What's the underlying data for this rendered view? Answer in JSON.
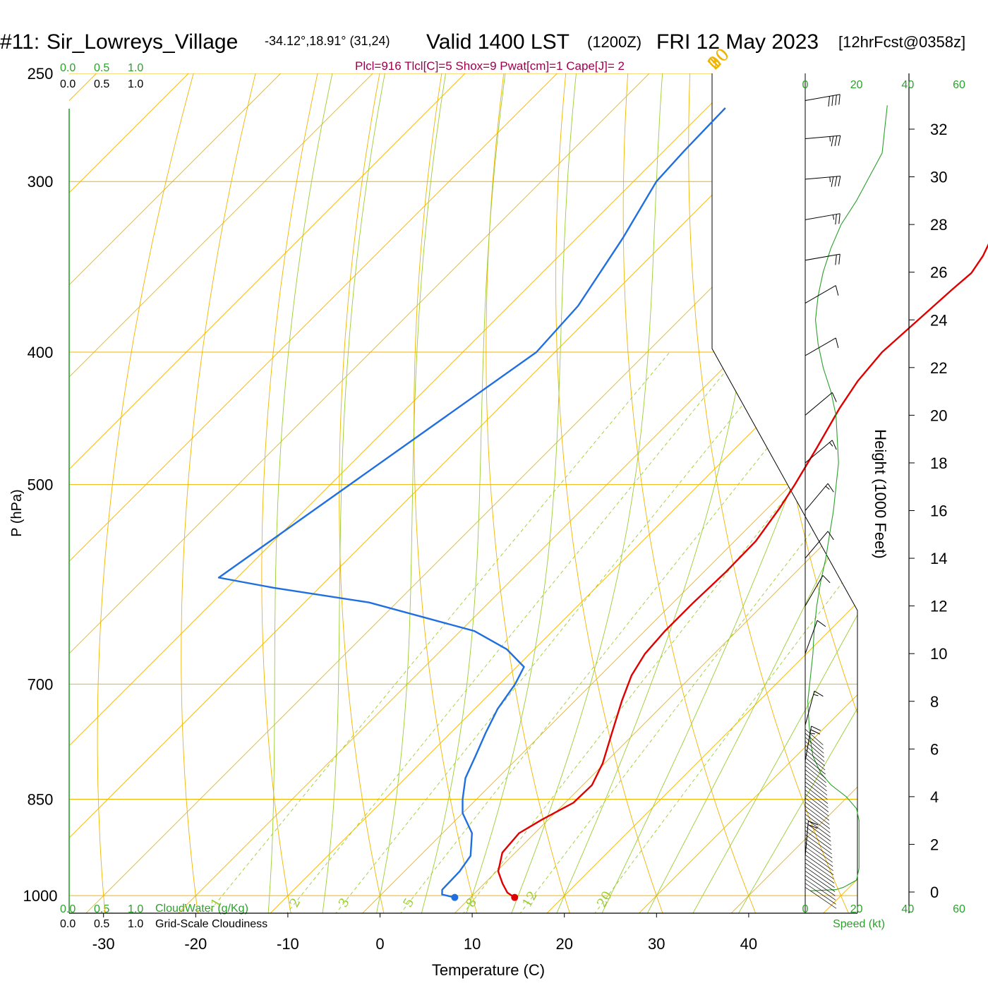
{
  "header": {
    "station_id": "#11:",
    "station_name": "Sir_Lowreys_Village",
    "coords": "-34.12°,18.91° (31,24)",
    "valid": "Valid 1400 LST",
    "utc": "(1200Z)",
    "date": "FRI 12 May 2023",
    "forecast": "[12hrFcst@0358z]"
  },
  "indices": "Plcl=916 Tlcl[C]=5 Shox=9 Pwat[cm]=1 Cape[J]= 2",
  "axes": {
    "xlabel": "Temperature (C)",
    "ylabel": "P (hPa)",
    "height_label": "Height (1000 Feet)",
    "speed_label": "Speed (kt)"
  },
  "cloud_scale": {
    "ticks": [
      "0.0",
      "0.5",
      "1.0"
    ],
    "cloudwater_label": "CloudWater (g/Kg)",
    "cloudiness_label": "Grid-Scale Cloudiness"
  },
  "colors": {
    "isobar": "#f0b400",
    "isotherm": "#f0b400",
    "dry_adiabat": "#f0b400",
    "moist_adiabat": "#9acd32",
    "mixing_ratio": "#9acd32",
    "temperature": "#e00000",
    "dewpoint": "#1f6fe0",
    "wind_speed": "#2ca02c",
    "indices": "#a0004f",
    "axis_green": "#2ca02c"
  },
  "chart_data": {
    "type": "line",
    "diagram": "skew-T log-P",
    "x_ticks": [
      -30,
      -20,
      -10,
      0,
      10,
      20,
      30,
      40
    ],
    "pressure_ticks": [
      250,
      300,
      400,
      500,
      700,
      850,
      1000
    ],
    "pressure_range": [
      250,
      1030
    ],
    "isotherm_labels": [
      {
        "t": 10,
        "label": "10"
      },
      {
        "t": 0,
        "label": "0"
      },
      {
        "t": -10,
        "label": "-10"
      },
      {
        "t": -20,
        "label": "-20"
      },
      {
        "t": -30,
        "label": "-30"
      }
    ],
    "right_isotherm_labels": [
      {
        "t": 0,
        "label": "0"
      },
      {
        "t": 10,
        "label": "10"
      },
      {
        "t": 20,
        "label": "20"
      },
      {
        "t": 30,
        "label": "30"
      }
    ],
    "mixing_ratio_labels": [
      "1",
      "2",
      "3",
      "5",
      "8",
      "12",
      "20"
    ],
    "mixing_ratios": [
      1,
      2,
      3,
      5,
      8,
      12,
      20
    ],
    "series": [
      {
        "name": "Temperature",
        "points": [
          [
            1003,
            14.8
          ],
          [
            995,
            13.5
          ],
          [
            980,
            12.0
          ],
          [
            960,
            10.2
          ],
          [
            930,
            8.6
          ],
          [
            900,
            8.3
          ],
          [
            880,
            9.3
          ],
          [
            855,
            10.9
          ],
          [
            830,
            11.0
          ],
          [
            800,
            9.8
          ],
          [
            760,
            7.5
          ],
          [
            720,
            5.1
          ],
          [
            690,
            3.4
          ],
          [
            665,
            2.5
          ],
          [
            640,
            2.2
          ],
          [
            610,
            2.2
          ],
          [
            580,
            2.4
          ],
          [
            550,
            2.3
          ],
          [
            520,
            1.3
          ],
          [
            500,
            0.4
          ],
          [
            470,
            -1.2
          ],
          [
            440,
            -3.0
          ],
          [
            420,
            -4.0
          ],
          [
            400,
            -4.5
          ],
          [
            380,
            -4.1
          ],
          [
            360,
            -3.7
          ],
          [
            350,
            -3.4
          ],
          [
            340,
            -4.0
          ],
          [
            330,
            -5.0
          ],
          [
            320,
            -5.9
          ],
          [
            300,
            -6.8
          ],
          [
            280,
            -7.8
          ],
          [
            265,
            -8.7
          ]
        ]
      },
      {
        "name": "Dewpoint",
        "points": [
          [
            1003,
            8.3
          ],
          [
            998,
            6.6
          ],
          [
            990,
            6.1
          ],
          [
            960,
            6.0
          ],
          [
            935,
            5.5
          ],
          [
            900,
            3.2
          ],
          [
            870,
            0.0
          ],
          [
            850,
            -1.5
          ],
          [
            820,
            -3.5
          ],
          [
            790,
            -4.8
          ],
          [
            760,
            -6.2
          ],
          [
            730,
            -7.5
          ],
          [
            700,
            -8.3
          ],
          [
            680,
            -9.2
          ],
          [
            660,
            -13.0
          ],
          [
            640,
            -18.5
          ],
          [
            610,
            -33.0
          ],
          [
            595,
            -45.0
          ],
          [
            585,
            -52.0
          ],
          [
            400,
            -42.0
          ],
          [
            370,
            -42.5
          ],
          [
            330,
            -45.0
          ],
          [
            300,
            -47.5
          ],
          [
            285,
            -47.8
          ],
          [
            265,
            -48.0
          ]
        ]
      }
    ],
    "surface_markers": {
      "temperature": 14.8,
      "dewpoint": 8.3
    },
    "height_axis": {
      "label": "Height (1000 Feet)",
      "ticks": [
        0,
        2,
        4,
        6,
        8,
        10,
        12,
        14,
        16,
        18,
        20,
        22,
        24,
        26,
        28,
        30,
        32
      ],
      "range": [
        -0.8,
        33.5
      ]
    },
    "speed_axis": {
      "label": "Speed (kt)",
      "ticks": [
        "0",
        "20",
        "40",
        "60"
      ],
      "range": [
        0,
        60
      ]
    },
    "wind_speed_profile": [
      [
        0.05,
        2
      ],
      [
        0.1,
        12
      ],
      [
        0.2,
        15
      ],
      [
        0.5,
        20
      ],
      [
        1,
        21
      ],
      [
        2,
        21
      ],
      [
        3,
        21
      ],
      [
        3.5,
        20
      ],
      [
        4,
        16
      ],
      [
        4.5,
        10
      ],
      [
        5,
        6
      ],
      [
        5.7,
        3
      ],
      [
        6.4,
        2
      ],
      [
        7,
        1.5
      ],
      [
        8,
        1
      ],
      [
        9,
        2
      ],
      [
        10,
        3
      ],
      [
        11,
        3.5
      ],
      [
        12,
        4.5
      ],
      [
        13,
        6
      ],
      [
        14,
        8
      ],
      [
        16,
        11
      ],
      [
        18,
        13
      ],
      [
        20,
        12
      ],
      [
        21,
        10
      ],
      [
        22,
        7
      ],
      [
        23,
        5
      ],
      [
        24,
        4
      ],
      [
        25,
        5
      ],
      [
        26,
        7
      ],
      [
        27,
        10
      ],
      [
        28,
        14
      ],
      [
        29,
        20
      ],
      [
        30,
        25
      ],
      [
        31,
        30
      ],
      [
        32,
        31
      ],
      [
        33,
        32
      ]
    ],
    "wind_barbs": [
      {
        "h": 1.5,
        "dir": 355,
        "spd": 20
      },
      {
        "h": 5.5,
        "dir": 350,
        "spd": 25
      },
      {
        "h": 7,
        "dir": 345,
        "spd": 15
      },
      {
        "h": 10,
        "dir": 340,
        "spd": 10
      },
      {
        "h": 12,
        "dir": 330,
        "spd": 10
      },
      {
        "h": 14,
        "dir": 320,
        "spd": 10
      },
      {
        "h": 16,
        "dir": 320,
        "spd": 15
      },
      {
        "h": 18,
        "dir": 310,
        "spd": 15
      },
      {
        "h": 20,
        "dir": 310,
        "spd": 10
      },
      {
        "h": 22.5,
        "dir": 300,
        "spd": 10
      },
      {
        "h": 24.7,
        "dir": 300,
        "spd": 10
      },
      {
        "h": 26.5,
        "dir": 280,
        "spd": 20
      },
      {
        "h": 28.2,
        "dir": 280,
        "spd": 25
      },
      {
        "h": 29.9,
        "dir": 275,
        "spd": 35
      },
      {
        "h": 31.6,
        "dir": 275,
        "spd": 35
      },
      {
        "h": 33.2,
        "dir": 280,
        "spd": 40
      }
    ]
  }
}
